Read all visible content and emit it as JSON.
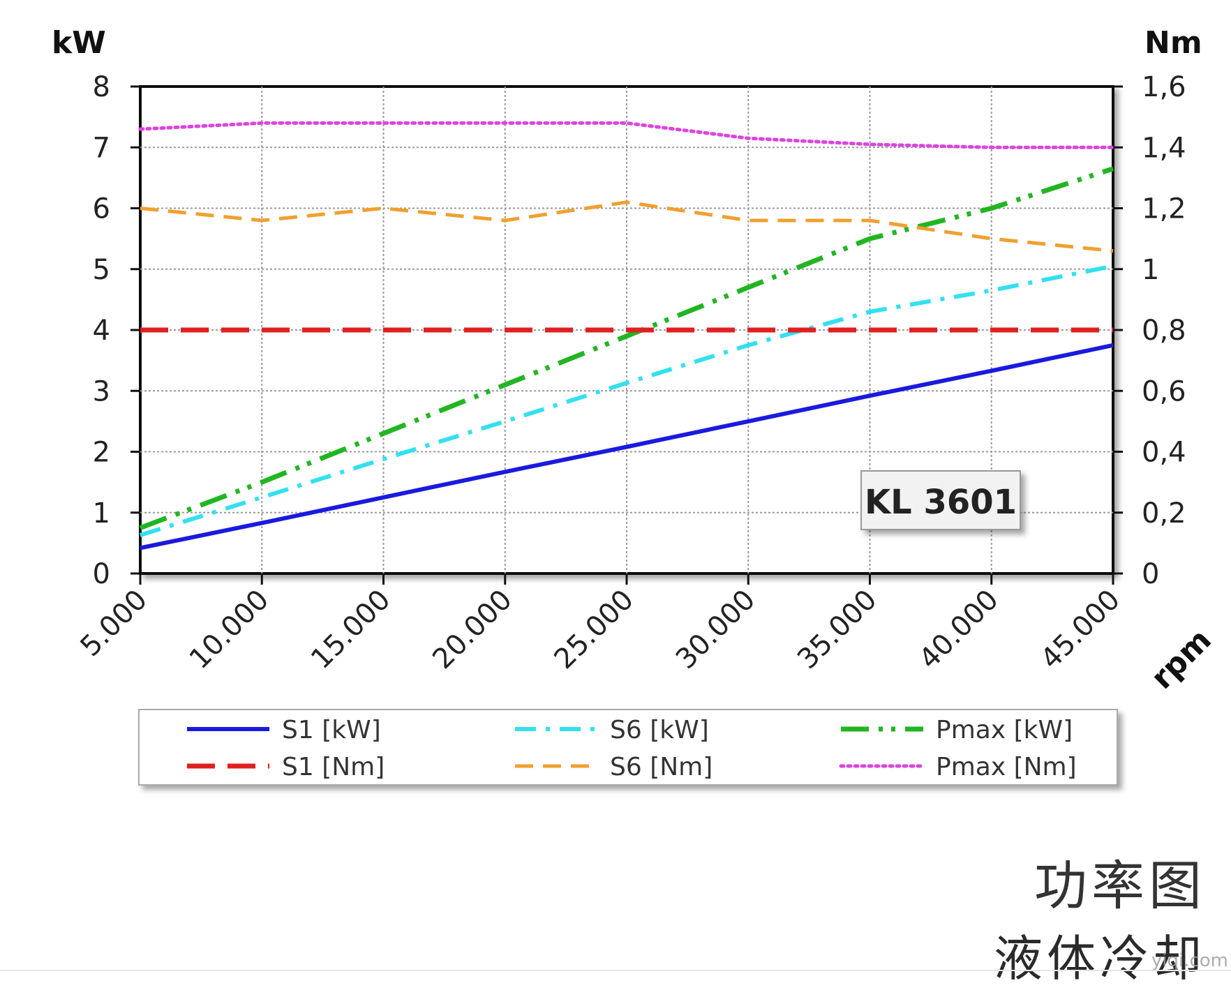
{
  "chart_data": {
    "type": "line",
    "model_label": "KL 3601",
    "left_axis_unit": "kW",
    "right_axis_unit": "Nm",
    "x_axis_unit": "rpm",
    "x_ticks": [
      "5.000",
      "10.000",
      "15.000",
      "20.000",
      "25.000",
      "30.000",
      "35.000",
      "40.000",
      "45.000"
    ],
    "x_range": [
      5000,
      45000
    ],
    "y_left_range": [
      0,
      8
    ],
    "y_left_ticks": [
      "0",
      "1",
      "2",
      "3",
      "4",
      "5",
      "6",
      "7",
      "8"
    ],
    "y_right_range": [
      0,
      1.6
    ],
    "y_right_ticks": [
      "0",
      "0,2",
      "0,4",
      "0,6",
      "0,8",
      "1",
      "1,2",
      "1,4",
      "1,6"
    ],
    "grid": true,
    "legend_position": "bottom",
    "x": [
      5000,
      10000,
      15000,
      20000,
      25000,
      30000,
      35000,
      40000,
      45000
    ],
    "series": [
      {
        "name": "S1 [kW]",
        "axis": "left",
        "color": "#1a1adf",
        "style": "solid",
        "values": [
          0.42,
          0.83,
          1.25,
          1.67,
          2.08,
          2.5,
          2.92,
          3.33,
          3.75
        ]
      },
      {
        "name": "S6 [kW]",
        "axis": "left",
        "color": "#33e0f0",
        "style": "dashdot",
        "values": [
          0.63,
          1.25,
          1.88,
          2.5,
          3.13,
          3.75,
          4.3,
          4.65,
          5.05
        ]
      },
      {
        "name": "Pmax [kW]",
        "axis": "left",
        "color": "#22b522",
        "style": "dashdotdot",
        "values": [
          0.75,
          1.5,
          2.3,
          3.1,
          3.9,
          4.7,
          5.5,
          6.0,
          6.65
        ]
      },
      {
        "name": "S1 [Nm]",
        "axis": "right",
        "color": "#e02020",
        "style": "longdash",
        "values": [
          0.8,
          0.8,
          0.8,
          0.8,
          0.8,
          0.8,
          0.8,
          0.8,
          0.8
        ]
      },
      {
        "name": "S6 [Nm]",
        "axis": "right",
        "color": "#f0a030",
        "style": "dash",
        "values": [
          1.2,
          1.16,
          1.2,
          1.16,
          1.22,
          1.16,
          1.16,
          1.1,
          1.06
        ]
      },
      {
        "name": "Pmax [Nm]",
        "axis": "right",
        "color": "#dd44dd",
        "style": "dotted",
        "values": [
          1.46,
          1.48,
          1.48,
          1.48,
          1.48,
          1.43,
          1.41,
          1.4,
          1.4
        ]
      }
    ]
  },
  "caption": {
    "title": "功率图",
    "subtitle": "液体冷却"
  },
  "watermark": "yiqi.com"
}
